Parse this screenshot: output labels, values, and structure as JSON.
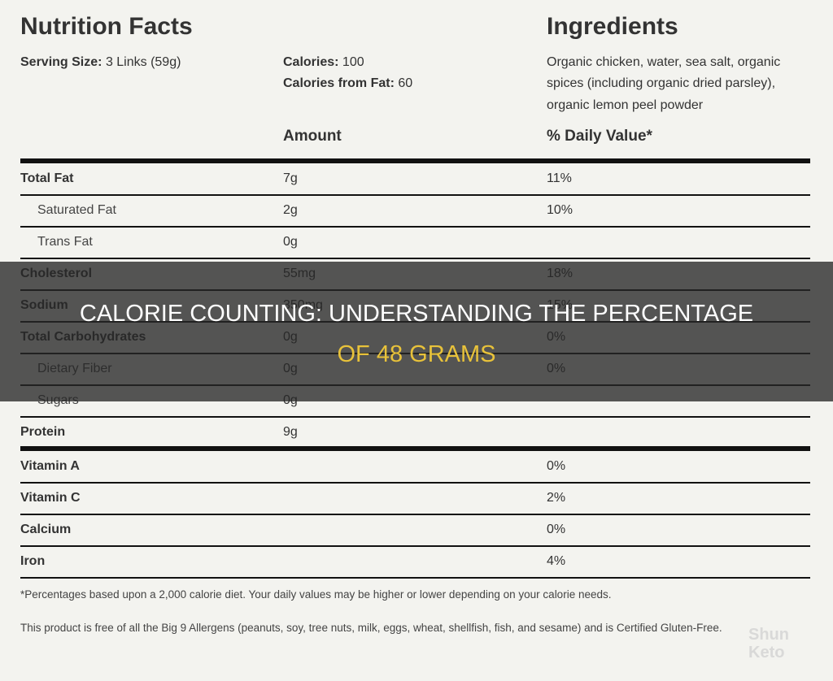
{
  "header": {
    "title": "Nutrition Facts",
    "ingredients_title": "Ingredients"
  },
  "serving": {
    "label": "Serving Size:",
    "value": "3 Links (59g)"
  },
  "calories": {
    "label": "Calories:",
    "value": "100"
  },
  "calories_from_fat": {
    "label": "Calories from Fat:",
    "value": "60"
  },
  "ingredients": [
    "Organic chicken, water, sea salt, organic",
    "spices (including organic dried parsley),",
    "organic lemon peel powder"
  ],
  "columns": {
    "amount": "Amount",
    "daily_value": "% Daily Value*"
  },
  "nutrients": [
    {
      "name": "Total Fat",
      "amount": "7g",
      "daily_value": "11%"
    },
    {
      "name": "Saturated Fat",
      "amount": "2g",
      "daily_value": "10%",
      "indent": true
    },
    {
      "name": "Trans Fat",
      "amount": "0g",
      "indent": true
    },
    {
      "name": "Cholesterol",
      "amount": "55mg",
      "daily_value": "18%"
    },
    {
      "name": "Sodium",
      "amount": "350mg",
      "daily_value": "15%"
    },
    {
      "name": "Total Carbohydrates",
      "amount": "0g",
      "daily_value": "0%"
    },
    {
      "name": "Dietary Fiber",
      "amount": "0g",
      "daily_value": "0%",
      "indent": true
    },
    {
      "name": "Sugars",
      "amount": "0g",
      "indent": true
    },
    {
      "name": "Protein",
      "amount": "9g"
    }
  ],
  "vitamins": [
    {
      "name": "Vitamin A",
      "daily_value": "0%"
    },
    {
      "name": "Vitamin C",
      "daily_value": "2%"
    },
    {
      "name": "Calcium",
      "daily_value": "0%"
    },
    {
      "name": "Iron",
      "daily_value": "4%"
    }
  ],
  "footnote": "*Percentages based upon a 2,000 calorie diet. Your daily values may be higher or lower depending on your calorie needs.",
  "allergens": "This product is free of all the Big 9 Allergens (peanuts, soy, tree nuts, milk, eggs, wheat, shellfish, fish, and sesame) and is Certified Gluten-Free.",
  "overlay": {
    "line1": "CALORIE COUNTING: UNDERSTANDING THE PERCENTAGE",
    "line2": "OF 48 GRAMS"
  },
  "watermark": [
    "Shun",
    "Keto"
  ]
}
